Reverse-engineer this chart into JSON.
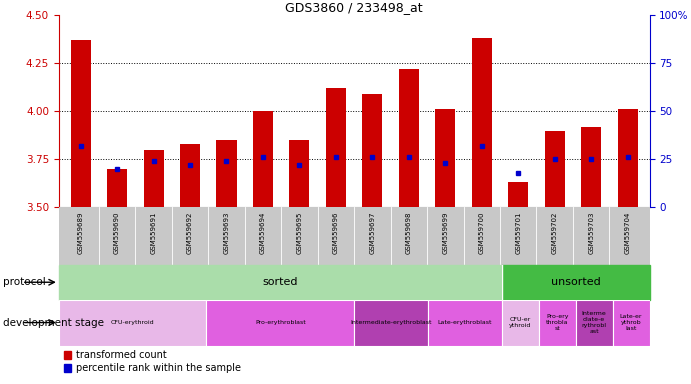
{
  "title": "GDS3860 / 233498_at",
  "samples": [
    "GSM559689",
    "GSM559690",
    "GSM559691",
    "GSM559692",
    "GSM559693",
    "GSM559694",
    "GSM559695",
    "GSM559696",
    "GSM559697",
    "GSM559698",
    "GSM559699",
    "GSM559700",
    "GSM559701",
    "GSM559702",
    "GSM559703",
    "GSM559704"
  ],
  "bar_tops": [
    4.37,
    3.7,
    3.8,
    3.83,
    3.85,
    4.0,
    3.85,
    4.12,
    4.09,
    4.22,
    4.01,
    4.38,
    3.63,
    3.9,
    3.92,
    4.01
  ],
  "blue_y": [
    3.82,
    3.7,
    3.74,
    3.72,
    3.74,
    3.76,
    3.72,
    3.76,
    3.76,
    3.76,
    3.73,
    3.82,
    3.68,
    3.75,
    3.75,
    3.76
  ],
  "bar_bottom": 3.5,
  "ylim_left": [
    3.5,
    4.5
  ],
  "ylim_right": [
    0,
    100
  ],
  "yticks_left": [
    3.5,
    3.75,
    4.0,
    4.25,
    4.5
  ],
  "yticks_right": [
    0,
    25,
    50,
    75,
    100
  ],
  "hlines": [
    3.75,
    4.0,
    4.25
  ],
  "bar_color": "#cc0000",
  "blue_color": "#0000cc",
  "sorted_n": 12,
  "sorted_color": "#aaddaa",
  "unsorted_color": "#44bb44",
  "left_axis_color": "#cc0000",
  "right_axis_color": "#0000cc",
  "tick_area_color": "#c8c8c8",
  "dev_groups": [
    {
      "start": 0,
      "end": 4,
      "label": "CFU-erythroid",
      "color": "#e8b8e8"
    },
    {
      "start": 4,
      "end": 8,
      "label": "Pro-erythroblast",
      "color": "#e060e0"
    },
    {
      "start": 8,
      "end": 10,
      "label": "Intermediate-erythroblast",
      "color": "#b040b0"
    },
    {
      "start": 10,
      "end": 12,
      "label": "Late-erythroblast",
      "color": "#e060e0"
    },
    {
      "start": 12,
      "end": 13,
      "label": "CFU-er\nythroid",
      "color": "#e8b8e8"
    },
    {
      "start": 13,
      "end": 14,
      "label": "Pro-ery\nthrobla\nst",
      "color": "#e060e0"
    },
    {
      "start": 14,
      "end": 15,
      "label": "Interme\ndiate-e\nrythrobl\nast",
      "color": "#b040b0"
    },
    {
      "start": 15,
      "end": 16,
      "label": "Late-er\nythrob\nlast",
      "color": "#e060e0"
    }
  ]
}
